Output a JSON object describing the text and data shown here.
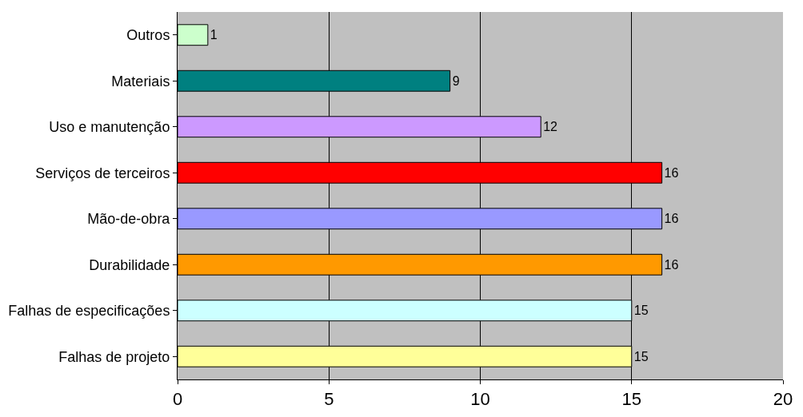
{
  "chart_data": {
    "type": "bar",
    "orientation": "horizontal",
    "categories": [
      "Outros",
      "Materiais",
      "Uso e manutenção",
      "Serviços de terceiros",
      "Mão-de-obra",
      "Durabilidade",
      "Falhas de especificações",
      "Falhas de projeto"
    ],
    "values": [
      1,
      9,
      12,
      16,
      16,
      16,
      15,
      15
    ],
    "colors": [
      "#ccffcc",
      "#008080",
      "#cc99ff",
      "#ff0000",
      "#9999ff",
      "#ff9900",
      "#ccffff",
      "#ffff99"
    ],
    "xlim": [
      0,
      20
    ],
    "xticks": [
      0,
      5,
      10,
      15,
      20
    ],
    "grid": "x",
    "data_labels": true,
    "legend": false
  }
}
